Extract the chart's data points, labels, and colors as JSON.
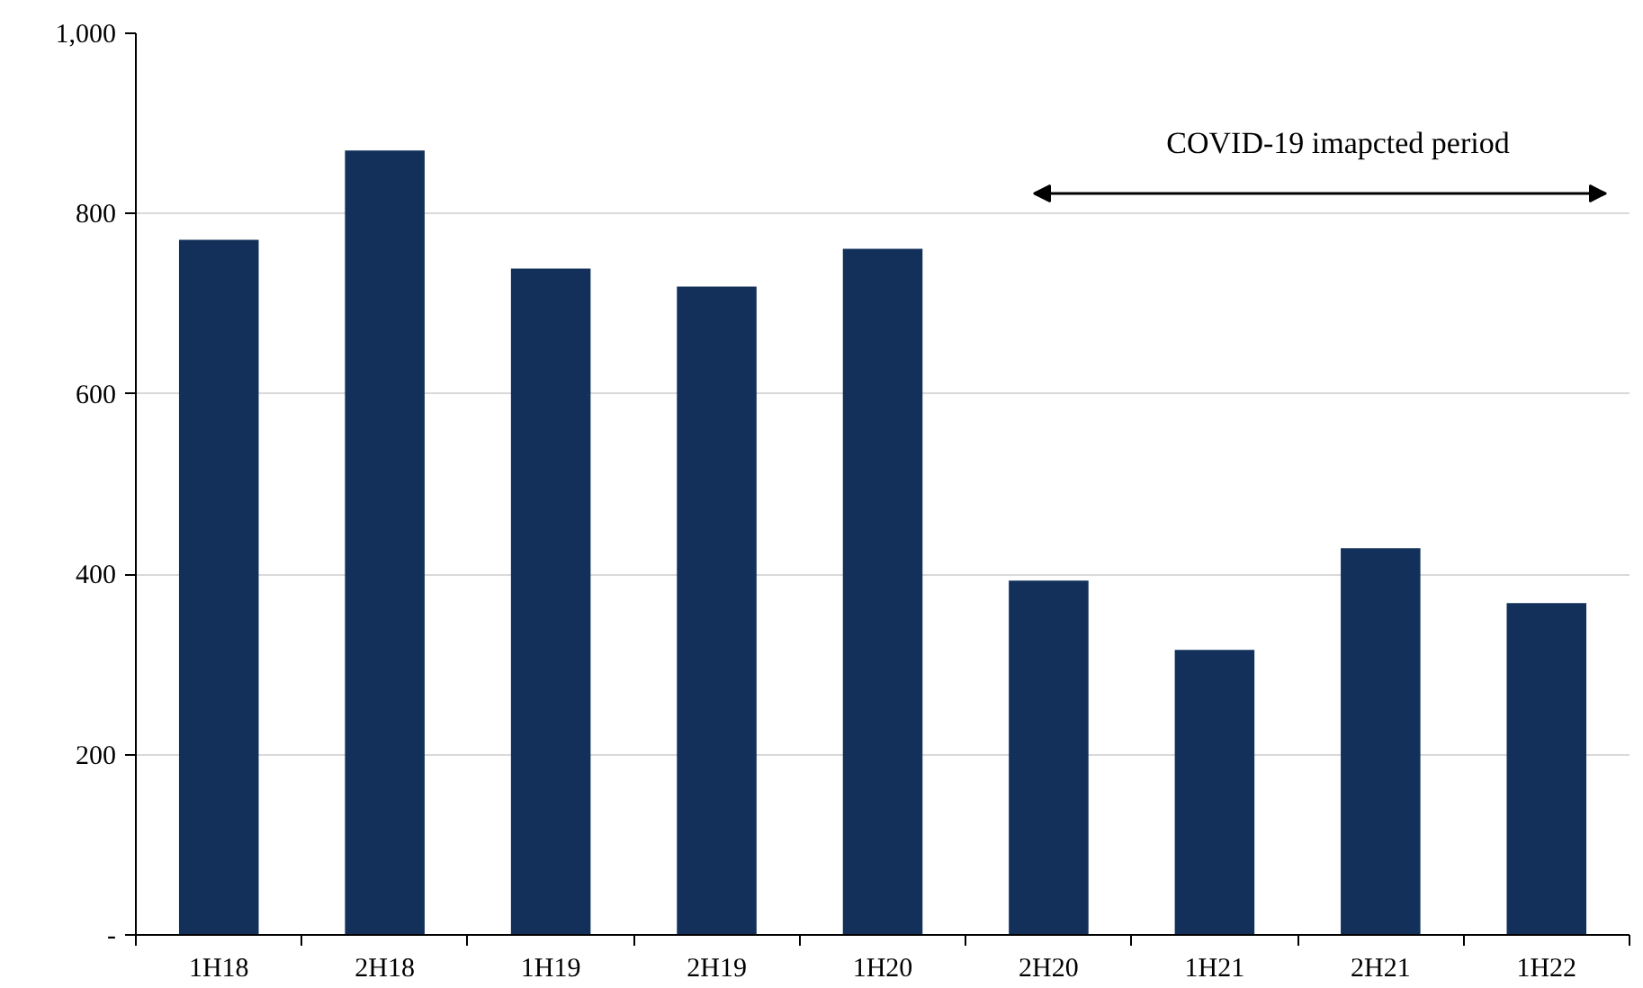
{
  "chart_data": {
    "type": "bar",
    "categories": [
      "1H18",
      "2H18",
      "1H19",
      "2H19",
      "1H20",
      "2H20",
      "1H21",
      "2H21",
      "1H22"
    ],
    "values": [
      771,
      870,
      739,
      719,
      761,
      393,
      316,
      429,
      368
    ],
    "color": "#12305a",
    "ylim": [
      0,
      1000
    ],
    "yticks": [
      {
        "value": 0,
        "label": "-"
      },
      200,
      400,
      600,
      800,
      {
        "value": 1000,
        "label": "1,000"
      }
    ],
    "grid": "y",
    "annotations": [
      "COVID-19 imapcted period"
    ]
  }
}
